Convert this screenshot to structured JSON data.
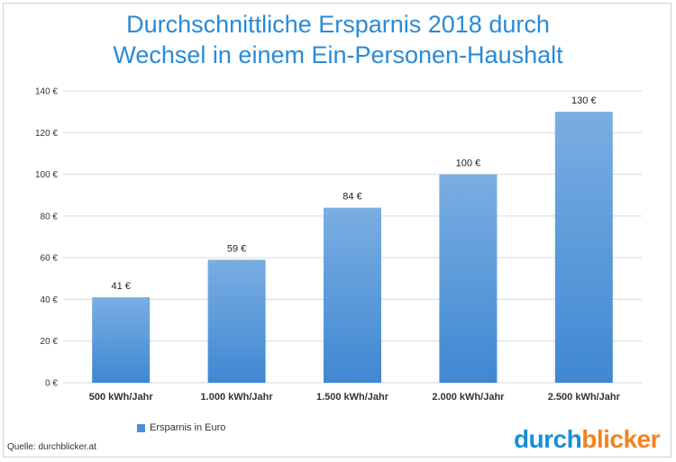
{
  "title_lines": [
    "Durchschnittliche Ersparnis 2018 durch",
    "Wechsel in einem Ein-Personen-Haushalt"
  ],
  "source": "Quelle: durchblicker.at",
  "logo": {
    "part1": "durch",
    "part2": "blicker",
    "color1": "#1a8ed8",
    "color2": "#f58220"
  },
  "colors": {
    "title": "#2a8ad6",
    "bar_top": "#7aaee2",
    "bar_bottom": "#3f88d2",
    "grid": "#d9d9d9"
  },
  "chart_data": {
    "type": "bar",
    "title": "Durchschnittliche Ersparnis 2018 durch Wechsel in einem Ein-Personen-Haushalt",
    "categories": [
      "500 kWh/Jahr",
      "1.000 kWh/Jahr",
      "1.500 kWh/Jahr",
      "2.000 kWh/Jahr",
      "2.500 kWh/Jahr"
    ],
    "series": [
      {
        "name": "Ersparnis in Euro",
        "values": [
          41,
          59,
          84,
          100,
          130
        ]
      }
    ],
    "data_labels": [
      "41 €",
      "59 €",
      "84 €",
      "100 €",
      "130 €"
    ],
    "y_ticks": [
      "0 €",
      "20 €",
      "40 €",
      "60 €",
      "80 €",
      "100 €",
      "120 €",
      "140 €"
    ],
    "ylim": [
      0,
      140
    ],
    "grid": true,
    "legend_position": "bottom-left"
  }
}
